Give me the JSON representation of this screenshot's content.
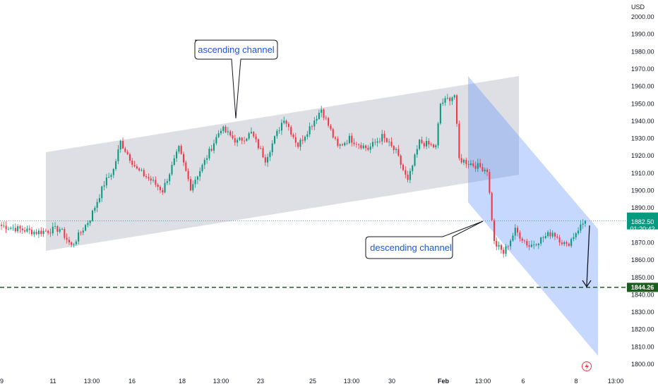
{
  "chart_data": {
    "type": "candlestick",
    "instrument_currency": "USD",
    "y_axis": {
      "range": [
        1798,
        2004
      ],
      "ticks": [
        2000,
        1990,
        1980,
        1970,
        1960,
        1950,
        1940,
        1930,
        1920,
        1910,
        1900,
        1890,
        1870,
        1860,
        1850,
        1840,
        1830,
        1820,
        1810,
        1800
      ],
      "tick_labels": [
        "2000.00",
        "1990.00",
        "1980.00",
        "1970.00",
        "1960.00",
        "1950.00",
        "1940.00",
        "1930.00",
        "1920.00",
        "1910.00",
        "1900.00",
        "1890.00",
        "1870.00",
        "1860.00",
        "1850.00",
        "1840.00",
        "1830.00",
        "1820.00",
        "1810.00",
        "1800.00"
      ]
    },
    "x_axis": {
      "tick_labels": [
        "9",
        "11",
        "13:00",
        "16",
        "18",
        "13:00",
        "23",
        "25",
        "13:00",
        "30",
        "Feb",
        "13:00",
        "6",
        "8",
        "13:00"
      ],
      "bold_labels": [
        "Feb"
      ]
    },
    "price_labels": {
      "last_price": "1882.50",
      "countdown": "01:20:42",
      "target": "1844.26"
    },
    "last_price_value": 1882.5,
    "target_value": 1844.26,
    "annotations": {
      "ascending": "ascending channel",
      "descending": "descending channel"
    },
    "segments": [
      {
        "from": 1880,
        "to": 1876,
        "bars": 16
      },
      {
        "from": 1876,
        "to": 1878,
        "bars": 10
      },
      {
        "from": 1878,
        "to": 1868,
        "bars": 5
      },
      {
        "from": 1868,
        "to": 1884,
        "bars": 8
      },
      {
        "from": 1884,
        "to": 1904,
        "bars": 6
      },
      {
        "from": 1904,
        "to": 1912,
        "bars": 4
      },
      {
        "from": 1912,
        "to": 1928,
        "bars": 3
      },
      {
        "from": 1928,
        "to": 1912,
        "bars": 7
      },
      {
        "from": 1912,
        "to": 1906,
        "bars": 6
      },
      {
        "from": 1906,
        "to": 1900,
        "bars": 5
      },
      {
        "from": 1900,
        "to": 1924,
        "bars": 7
      },
      {
        "from": 1924,
        "to": 1902,
        "bars": 5
      },
      {
        "from": 1902,
        "to": 1914,
        "bars": 5
      },
      {
        "from": 1914,
        "to": 1936,
        "bars": 8
      },
      {
        "from": 1936,
        "to": 1928,
        "bars": 7
      },
      {
        "from": 1928,
        "to": 1933,
        "bars": 6
      },
      {
        "from": 1933,
        "to": 1918,
        "bars": 6
      },
      {
        "from": 1918,
        "to": 1942,
        "bars": 8
      },
      {
        "from": 1942,
        "to": 1926,
        "bars": 6
      },
      {
        "from": 1926,
        "to": 1947,
        "bars": 10
      },
      {
        "from": 1947,
        "to": 1925,
        "bars": 7
      },
      {
        "from": 1925,
        "to": 1930,
        "bars": 5
      },
      {
        "from": 1930,
        "to": 1924,
        "bars": 8
      },
      {
        "from": 1924,
        "to": 1931,
        "bars": 6
      },
      {
        "from": 1931,
        "to": 1922,
        "bars": 6
      },
      {
        "from": 1922,
        "to": 1905,
        "bars": 5
      },
      {
        "from": 1905,
        "to": 1928,
        "bars": 5
      },
      {
        "from": 1928,
        "to": 1925,
        "bars": 7
      },
      {
        "from": 1925,
        "to": 1950,
        "bars": 2
      },
      {
        "from": 1950,
        "to": 1955,
        "bars": 6
      },
      {
        "from": 1955,
        "to": 1918,
        "bars": 2
      },
      {
        "from": 1918,
        "to": 1912,
        "bars": 12
      },
      {
        "from": 1912,
        "to": 1870,
        "bars": 3
      },
      {
        "from": 1870,
        "to": 1864,
        "bars": 4
      },
      {
        "from": 1864,
        "to": 1877,
        "bars": 5
      },
      {
        "from": 1877,
        "to": 1868,
        "bars": 6
      },
      {
        "from": 1868,
        "to": 1876,
        "bars": 10
      },
      {
        "from": 1876,
        "to": 1868,
        "bars": 6
      },
      {
        "from": 1868,
        "to": 1878,
        "bars": 5
      },
      {
        "from": 1878,
        "to": 1882.5,
        "bars": 3
      }
    ],
    "grid": false,
    "legend": "none"
  }
}
